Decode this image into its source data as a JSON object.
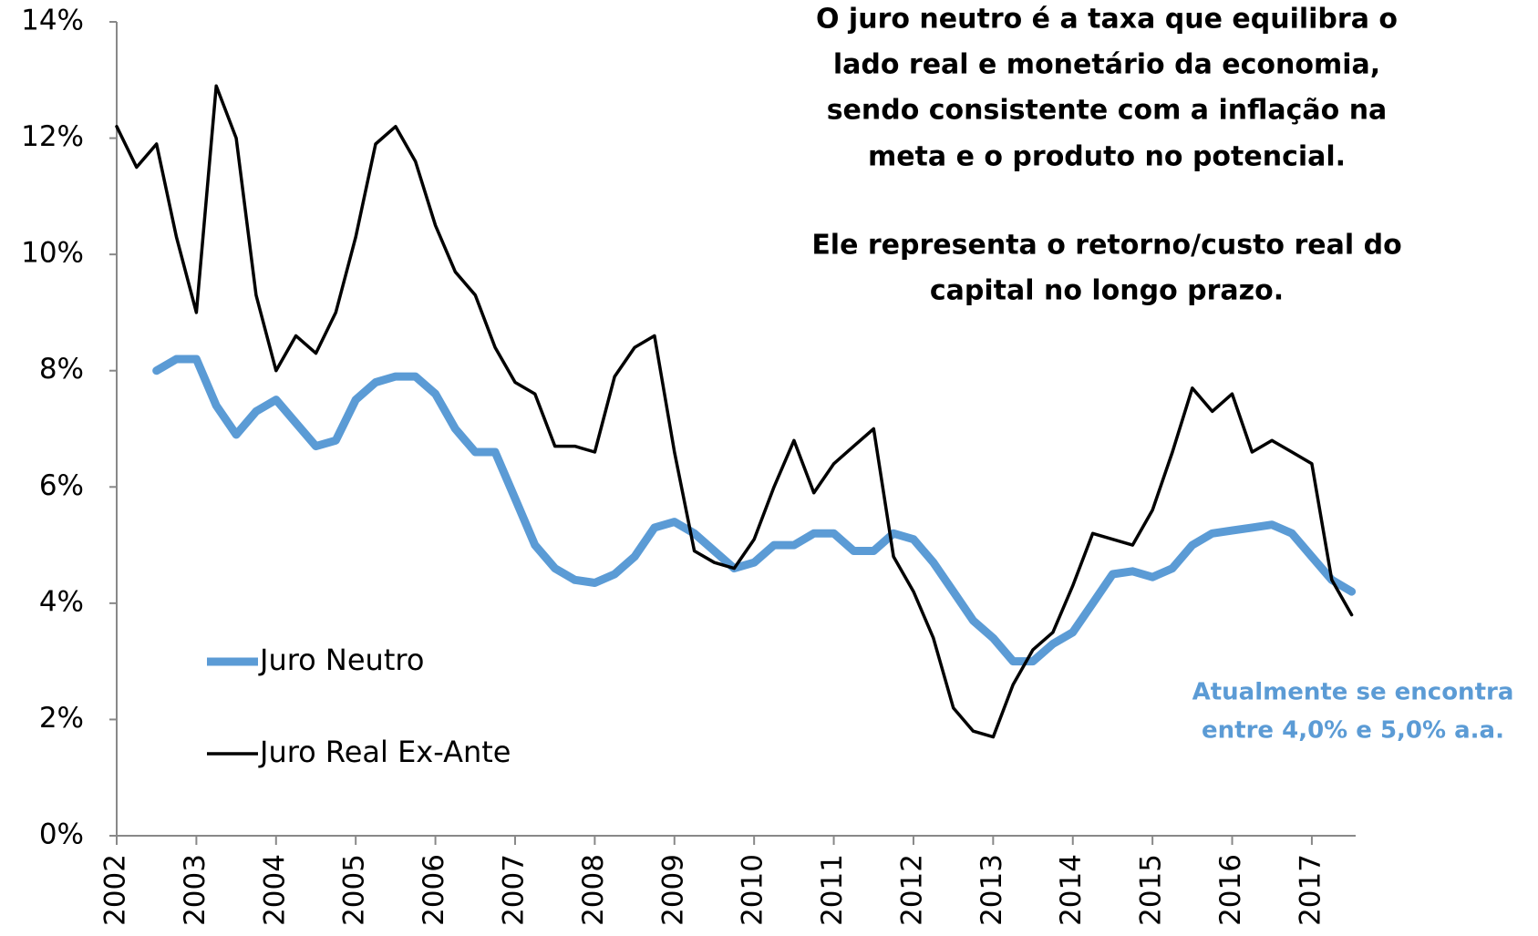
{
  "chart_data": {
    "type": "line",
    "x": [
      2002,
      2002.25,
      2002.5,
      2002.75,
      2003,
      2003.25,
      2003.5,
      2003.75,
      2004,
      2004.25,
      2004.5,
      2004.75,
      2005,
      2005.25,
      2005.5,
      2005.75,
      2006,
      2006.25,
      2006.5,
      2006.75,
      2007,
      2007.25,
      2007.5,
      2007.75,
      2008,
      2008.25,
      2008.5,
      2008.75,
      2009,
      2009.25,
      2009.5,
      2009.75,
      2010,
      2010.25,
      2010.5,
      2010.75,
      2011,
      2011.25,
      2011.5,
      2011.75,
      2012,
      2012.25,
      2012.5,
      2012.75,
      2013,
      2013.25,
      2013.5,
      2013.75,
      2014,
      2014.25,
      2014.5,
      2014.75,
      2015,
      2015.25,
      2015.5,
      2015.75,
      2016,
      2016.25,
      2016.5,
      2016.75,
      2017,
      2017.25,
      2017.5
    ],
    "series": [
      {
        "name": "Juro Neutro",
        "color": "#5b9bd5",
        "values": [
          null,
          null,
          8.0,
          8.2,
          8.2,
          7.4,
          6.9,
          7.3,
          7.5,
          7.1,
          6.7,
          6.8,
          7.5,
          7.8,
          7.9,
          7.9,
          7.6,
          7.0,
          6.6,
          6.6,
          5.8,
          5.0,
          4.6,
          4.4,
          4.35,
          4.5,
          4.8,
          5.3,
          5.4,
          5.2,
          4.9,
          4.6,
          4.7,
          5.0,
          5.0,
          5.2,
          5.2,
          4.9,
          4.9,
          5.2,
          5.1,
          4.7,
          4.2,
          3.7,
          3.4,
          3.0,
          3.0,
          3.3,
          3.5,
          4.0,
          4.5,
          4.55,
          4.45,
          4.6,
          5.0,
          5.2,
          5.25,
          5.3,
          5.35,
          5.2,
          4.8,
          4.4,
          4.2
        ]
      },
      {
        "name": "Juro Real Ex-Ante",
        "color": "#000000",
        "values": [
          12.2,
          11.5,
          11.9,
          10.3,
          9.0,
          12.9,
          12.0,
          9.3,
          8.0,
          8.6,
          8.3,
          9.0,
          10.3,
          11.9,
          12.2,
          11.6,
          10.5,
          9.7,
          9.3,
          8.4,
          7.8,
          7.6,
          6.7,
          6.7,
          6.6,
          7.9,
          8.4,
          8.6,
          6.6,
          4.9,
          4.7,
          4.6,
          5.1,
          6.0,
          6.8,
          5.9,
          6.4,
          6.7,
          7.0,
          4.8,
          4.2,
          3.4,
          2.2,
          1.8,
          1.7,
          2.6,
          3.2,
          3.5,
          4.3,
          5.2,
          5.1,
          5.0,
          5.6,
          6.6,
          7.7,
          7.3,
          7.6,
          6.6,
          6.8,
          6.6,
          6.4,
          4.4,
          3.8
        ]
      }
    ],
    "xlim": [
      2002,
      2017.55
    ],
    "xticks": [
      2002,
      2003,
      2004,
      2005,
      2006,
      2007,
      2008,
      2009,
      2010,
      2011,
      2012,
      2013,
      2014,
      2015,
      2016,
      2017
    ],
    "ylim": [
      0,
      14
    ],
    "yticks": [
      {
        "value": 0,
        "label": "0%"
      },
      {
        "value": 2,
        "label": "2%"
      },
      {
        "value": 4,
        "label": "4%"
      },
      {
        "value": 6,
        "label": "6%"
      },
      {
        "value": 8,
        "label": "8%"
      },
      {
        "value": 10,
        "label": "10%"
      },
      {
        "value": 12,
        "label": "12%"
      },
      {
        "value": 14,
        "label": "14%"
      }
    ],
    "annotations": [
      {
        "color": "#000000",
        "lines": [
          "O juro neutro é a taxa que equilibra o",
          "lado real e monetário da economia,",
          "sendo consistente com a inflação na",
          "meta e o produto no potencial.",
          "Ele representa o retorno/custo real do",
          "capital no longo prazo."
        ]
      },
      {
        "color": "#5b9bd5",
        "lines": [
          "Atualmente se encontra",
          "entre 4,0% e 5,0% a.a."
        ]
      }
    ],
    "legend": "lower left"
  }
}
